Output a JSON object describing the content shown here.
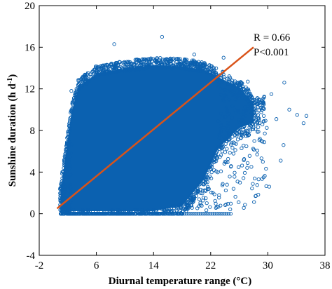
{
  "chart_data": {
    "type": "scatter",
    "title": "",
    "xlabel": "Diurnal temperature range (°C)",
    "ylabel_main": "Sunshine duration (h d",
    "ylabel_sup": "-1",
    "ylabel_close": ")",
    "xlim": [
      -2,
      38
    ],
    "ylim": [
      -4,
      20
    ],
    "xticks": [
      -2,
      6,
      14,
      22,
      30,
      38
    ],
    "yticks": [
      -4,
      0,
      4,
      8,
      12,
      16,
      20
    ],
    "grid": false,
    "legend": "none",
    "colors": {
      "points": "#0b61b0",
      "fit_line": "#d95319",
      "axes": "#000000"
    },
    "points_description": "dense cloud of daily observations",
    "scatter_envelope": [
      {
        "x": 1.0,
        "y_min": 0,
        "y_max": 2.5
      },
      {
        "x": 2.5,
        "y_min": 0,
        "y_max": 10
      },
      {
        "x": 3.5,
        "y_min": 0,
        "y_max": 12.5
      },
      {
        "x": 6,
        "y_min": 0,
        "y_max": 13.8
      },
      {
        "x": 10,
        "y_min": 0,
        "y_max": 14.3
      },
      {
        "x": 14,
        "y_min": 0,
        "y_max": 14.6
      },
      {
        "x": 18,
        "y_min": 0.5,
        "y_max": 14.5
      },
      {
        "x": 21,
        "y_min": 3,
        "y_max": 14.2
      },
      {
        "x": 23,
        "y_min": 6,
        "y_max": 13.5
      },
      {
        "x": 26,
        "y_min": 8,
        "y_max": 12.5
      },
      {
        "x": 28,
        "y_min": 8.5,
        "y_max": 11
      }
    ],
    "zero_line_points": {
      "y": 0,
      "x_from": 1.0,
      "x_to": 25.0
    },
    "outliers": [
      {
        "x": 8.5,
        "y": 16.3
      },
      {
        "x": 15.2,
        "y": 17.0
      },
      {
        "x": 19.7,
        "y": 15.3
      },
      {
        "x": 23.8,
        "y": 15.0
      },
      {
        "x": 27.2,
        "y": 12.7
      },
      {
        "x": 30.5,
        "y": 11.5
      },
      {
        "x": 32.3,
        "y": 12.6
      },
      {
        "x": 33.0,
        "y": 10.0
      },
      {
        "x": 34.1,
        "y": 9.5
      },
      {
        "x": 35.0,
        "y": 8.7
      },
      {
        "x": 35.4,
        "y": 9.4
      },
      {
        "x": 31.2,
        "y": 9.1
      },
      {
        "x": 32.2,
        "y": 6.6
      },
      {
        "x": 29.1,
        "y": 7.0
      },
      {
        "x": 27.7,
        "y": 4.5
      },
      {
        "x": 29.4,
        "y": 3.5
      },
      {
        "x": 30.2,
        "y": 2.6
      },
      {
        "x": 26.1,
        "y": 3.0
      },
      {
        "x": 25.2,
        "y": 2.4
      },
      {
        "x": 31.8,
        "y": 5.1
      },
      {
        "x": 28.5,
        "y": 5.7
      },
      {
        "x": 1.6,
        "y": 5.0
      },
      {
        "x": 2.5,
        "y": 11.8
      }
    ],
    "fit_line": {
      "x": [
        0.5,
        28.0
      ],
      "y": [
        0.5,
        16.0
      ]
    },
    "annotations": [
      "R = 0.66",
      "P<0.001"
    ]
  }
}
